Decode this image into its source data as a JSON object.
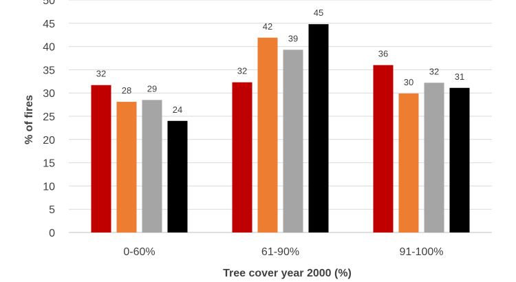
{
  "chart_data": {
    "type": "bar",
    "title": "",
    "xlabel": "Tree cover year 2000 (%)",
    "ylabel": "% of fires",
    "categories": [
      "0-60%",
      "61-90%",
      "91-100%"
    ],
    "ylim": [
      0,
      50
    ],
    "yticks": [
      0,
      5,
      10,
      15,
      20,
      25,
      30,
      35,
      40,
      45,
      50
    ],
    "grid": true,
    "legend": "none",
    "series": [
      {
        "color": "#c00000",
        "values": [
          31.7,
          32.3,
          36.0
        ],
        "labels": [
          "32",
          "32",
          "36"
        ]
      },
      {
        "color": "#ed7d31",
        "values": [
          28.1,
          41.9,
          29.9
        ],
        "labels": [
          "28",
          "42",
          "30"
        ]
      },
      {
        "color": "#a5a5a5",
        "values": [
          28.5,
          39.3,
          32.2
        ],
        "labels": [
          "29",
          "39",
          "32"
        ]
      },
      {
        "color": "#000000",
        "values": [
          24.0,
          44.8,
          31.1
        ],
        "labels": [
          "24",
          "45",
          "31"
        ]
      }
    ]
  }
}
